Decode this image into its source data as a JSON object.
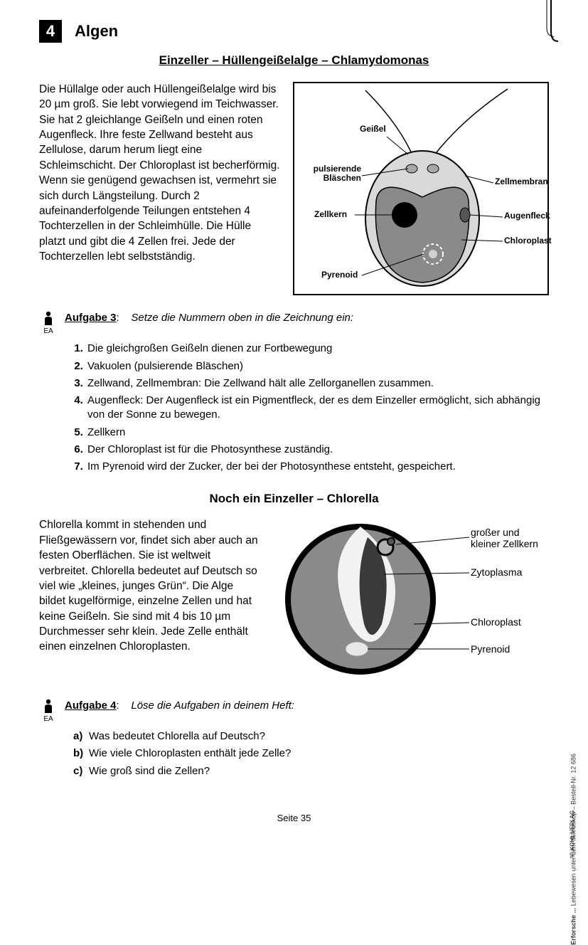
{
  "chapter": {
    "num": "4",
    "title": "Algen"
  },
  "subtitle1": "Einzeller – Hüllengeißelalge – Chlamydomonas",
  "intro1": "Die Hüllalge oder auch Hüllengeißelalge wird bis 20 µm groß. Sie lebt vorwiegend im Teichwasser. Sie hat 2 gleichlange Geißeln und einen roten Augenfleck. Ihre feste Zellwand besteht aus Zellulose, darum herum liegt eine Schleimschicht. Der Chloroplast ist becherförmig. Wenn sie genügend gewachsen ist, vermehrt sie sich durch Längsteilung. Durch 2 aufeinanderfolgende Teilungen entstehen 4 Tochterzellen in der Schleimhülle. Die Hülle platzt und gibt die 4 Zellen frei. Jede der Tochterzellen lebt selbstständig.",
  "diagram1": {
    "labels": {
      "geissel": "Geißel",
      "blaeschen_l1": "pulsierende",
      "blaeschen_l2": "Bläschen",
      "zellkern": "Zellkern",
      "pyrenoid": "Pyrenoid",
      "zellmembran": "Zellmembran",
      "augenfleck": "Augenfleck",
      "chloroplast": "Chloroplast"
    },
    "colors": {
      "outer": "#d9d9d9",
      "inner": "#8a8a8a",
      "stroke": "#000"
    }
  },
  "task3": {
    "label": "Aufgabe 3",
    "icon_sub": "EA",
    "instruction": "Setze die Nummern oben in die Zeichnung ein:",
    "items": [
      "Die gleichgroßen Geißeln dienen zur Fortbewegung",
      "Vakuolen (pulsierende Bläschen)",
      "Zellwand, Zellmembran: Die Zellwand hält alle Zellorganellen zusammen.",
      "Augenfleck: Der Augenfleck ist ein Pigmentfleck, der es dem Einzeller ermöglicht, sich abhängig von der Sonne zu bewegen.",
      "Zellkern",
      "Der Chloroplast ist für die Photosynthese zuständig.",
      "Im Pyrenoid wird der Zucker, der bei der Photosynthese entsteht, gespeichert."
    ]
  },
  "subtitle2": "Noch ein Einzeller – Chlorella",
  "intro2": "Chlorella kommt in stehenden und Fließgewässern vor, findet sich aber auch an festen Oberflächen. Sie ist weltweit verbreitet. Chlorella bedeutet auf Deutsch so viel wie „kleines, junges Grün“. Die Alge bildet kugel­förmige, einzelne Zellen und hat keine Geißeln. Sie sind mit 4 bis 10 µm Durchmesser sehr klein. Jede Zelle enthält einen einzelnen Chloroplasten.",
  "diagram2": {
    "labels": {
      "zellkern_l1": "großer und",
      "zellkern_l2": "kleiner Zellkern",
      "zytoplasma": "Zytoplasma",
      "chloroplast": "Chloroplast",
      "pyrenoid": "Pyrenoid"
    },
    "colors": {
      "ring": "#000",
      "fill": "#8a8a8a",
      "light": "#f2f2f2",
      "nucleus": "#3a3a3a"
    }
  },
  "task4": {
    "label": "Aufgabe 4",
    "icon_sub": "EA",
    "instruction": "Löse die Aufgaben in deinem Heft:",
    "items": [
      {
        "lbl": "a)",
        "txt": "Was bedeutet Chlorella auf Deutsch?"
      },
      {
        "lbl": "b)",
        "txt": "Wie viele Chloroplasten enthält jede Zelle?"
      },
      {
        "lbl": "c)",
        "txt": "Wie groß sind die Zellen?"
      }
    ]
  },
  "footer": "Seite 35",
  "side": {
    "line1": "Erforsche ...",
    "line2": "Lebewesen unter dem Mikroskop  –  Bestell-Nr. 12 686",
    "logo": "KOHL VERLAG"
  }
}
